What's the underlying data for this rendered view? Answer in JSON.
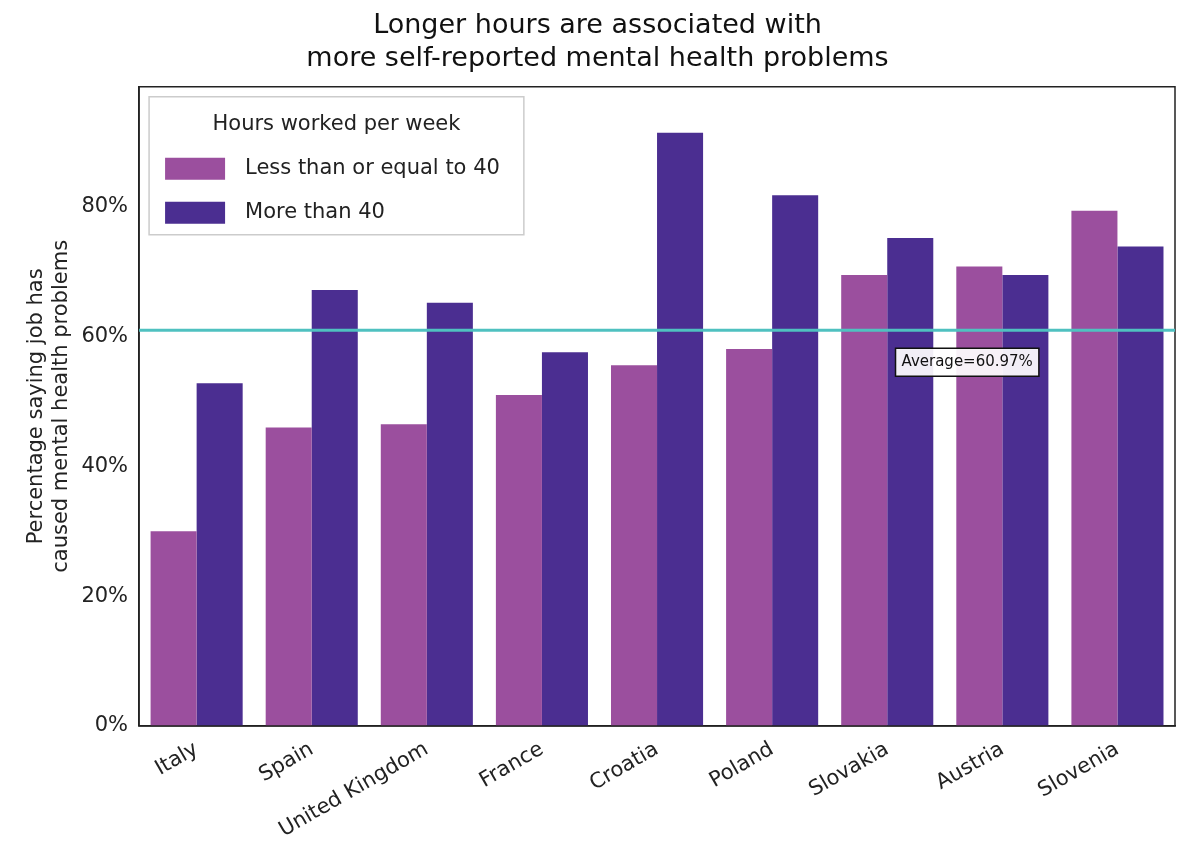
{
  "chart_data": {
    "type": "bar",
    "title": "Longer hours are associated with\nmore self-reported mental health problems",
    "ylabel": "Percentage saying job has\ncaused mental health problems",
    "legend_title": "Hours worked per week",
    "categories": [
      "Italy",
      "Spain",
      "United Kingdom",
      "France",
      "Croatia",
      "Poland",
      "Slovakia",
      "Austria",
      "Slovenia"
    ],
    "series": [
      {
        "name": "Less than or equal to 40",
        "color": "#9b4f9e",
        "values": [
          30,
          46,
          46.5,
          51,
          55.6,
          58.1,
          69.5,
          70.8,
          79.4
        ]
      },
      {
        "name": "More than 40",
        "color": "#4b2e91",
        "values": [
          52.8,
          67.2,
          65.2,
          57.6,
          91.4,
          81.8,
          75.2,
          69.5,
          73.9
        ]
      }
    ],
    "ylim": [
      0,
      98.5
    ],
    "yticks": [
      {
        "value": 0,
        "label": "0%"
      },
      {
        "value": 20,
        "label": "20%"
      },
      {
        "value": 40,
        "label": "40%"
      },
      {
        "value": 60,
        "label": "60%"
      },
      {
        "value": 80,
        "label": "80%"
      }
    ],
    "ref_lines": [
      {
        "axis": "y",
        "value": 60.97,
        "label": "Average=60.97%",
        "color": "#4fc1c0"
      }
    ],
    "grid": false,
    "legend": "top left"
  }
}
